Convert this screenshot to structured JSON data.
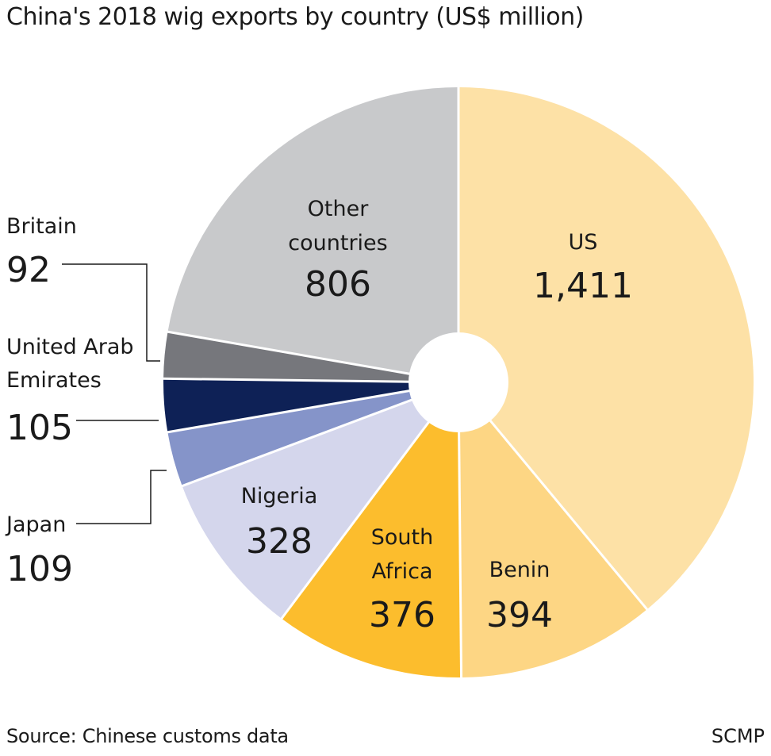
{
  "title": "China's 2018 wig exports by country (US$ million)",
  "source": "Source: Chinese customs data",
  "credit": "SCMP",
  "chart_data": {
    "type": "pie",
    "style": "donut",
    "slices": [
      {
        "name_lines": [
          "US"
        ],
        "value": 1411,
        "value_label": "1,411",
        "color": "#fde1a6",
        "label_placement": "inside"
      },
      {
        "name_lines": [
          "Benin"
        ],
        "value": 394,
        "value_label": "394",
        "color": "#fdd684",
        "label_placement": "inside"
      },
      {
        "name_lines": [
          "South",
          "Africa"
        ],
        "value": 376,
        "value_label": "376",
        "color": "#fcbd2d",
        "label_placement": "inside"
      },
      {
        "name_lines": [
          "Nigeria"
        ],
        "value": 328,
        "value_label": "328",
        "color": "#d4d6ec",
        "label_placement": "inside"
      },
      {
        "name_lines": [
          "Japan"
        ],
        "value": 109,
        "value_label": "109",
        "color": "#8594c9",
        "label_placement": "outside"
      },
      {
        "name_lines": [
          "United Arab",
          "Emirates"
        ],
        "value": 105,
        "value_label": "105",
        "color": "#0e2156",
        "label_placement": "outside"
      },
      {
        "name_lines": [
          "Britain"
        ],
        "value": 92,
        "value_label": "92",
        "color": "#76777c",
        "label_placement": "outside"
      },
      {
        "name_lines": [
          "Other",
          "countries"
        ],
        "value": 806,
        "value_label": "806",
        "color": "#c8c9cb",
        "label_placement": "inside"
      }
    ]
  }
}
